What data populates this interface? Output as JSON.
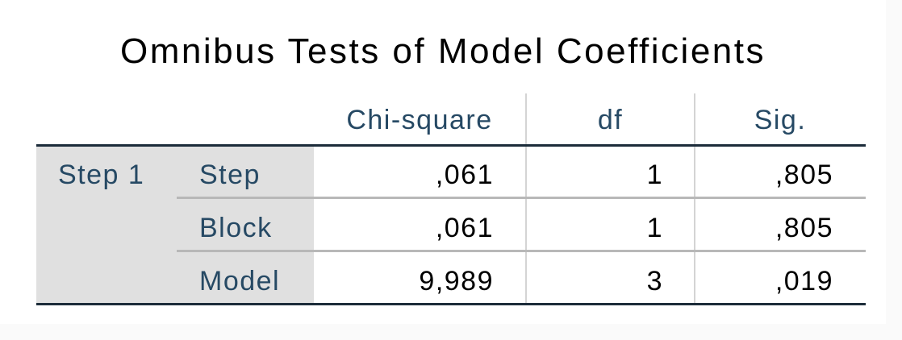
{
  "table": {
    "title": "Omnibus Tests of Model Coefficients",
    "columns": [
      "Chi-square",
      "df",
      "Sig."
    ],
    "group_label": "Step 1",
    "rows": [
      {
        "label": "Step",
        "chi_square": ",061",
        "df": "1",
        "sig": ",805"
      },
      {
        "label": "Block",
        "chi_square": ",061",
        "df": "1",
        "sig": ",805"
      },
      {
        "label": "Model",
        "chi_square": "9,989",
        "df": "3",
        "sig": ",019"
      }
    ]
  }
}
